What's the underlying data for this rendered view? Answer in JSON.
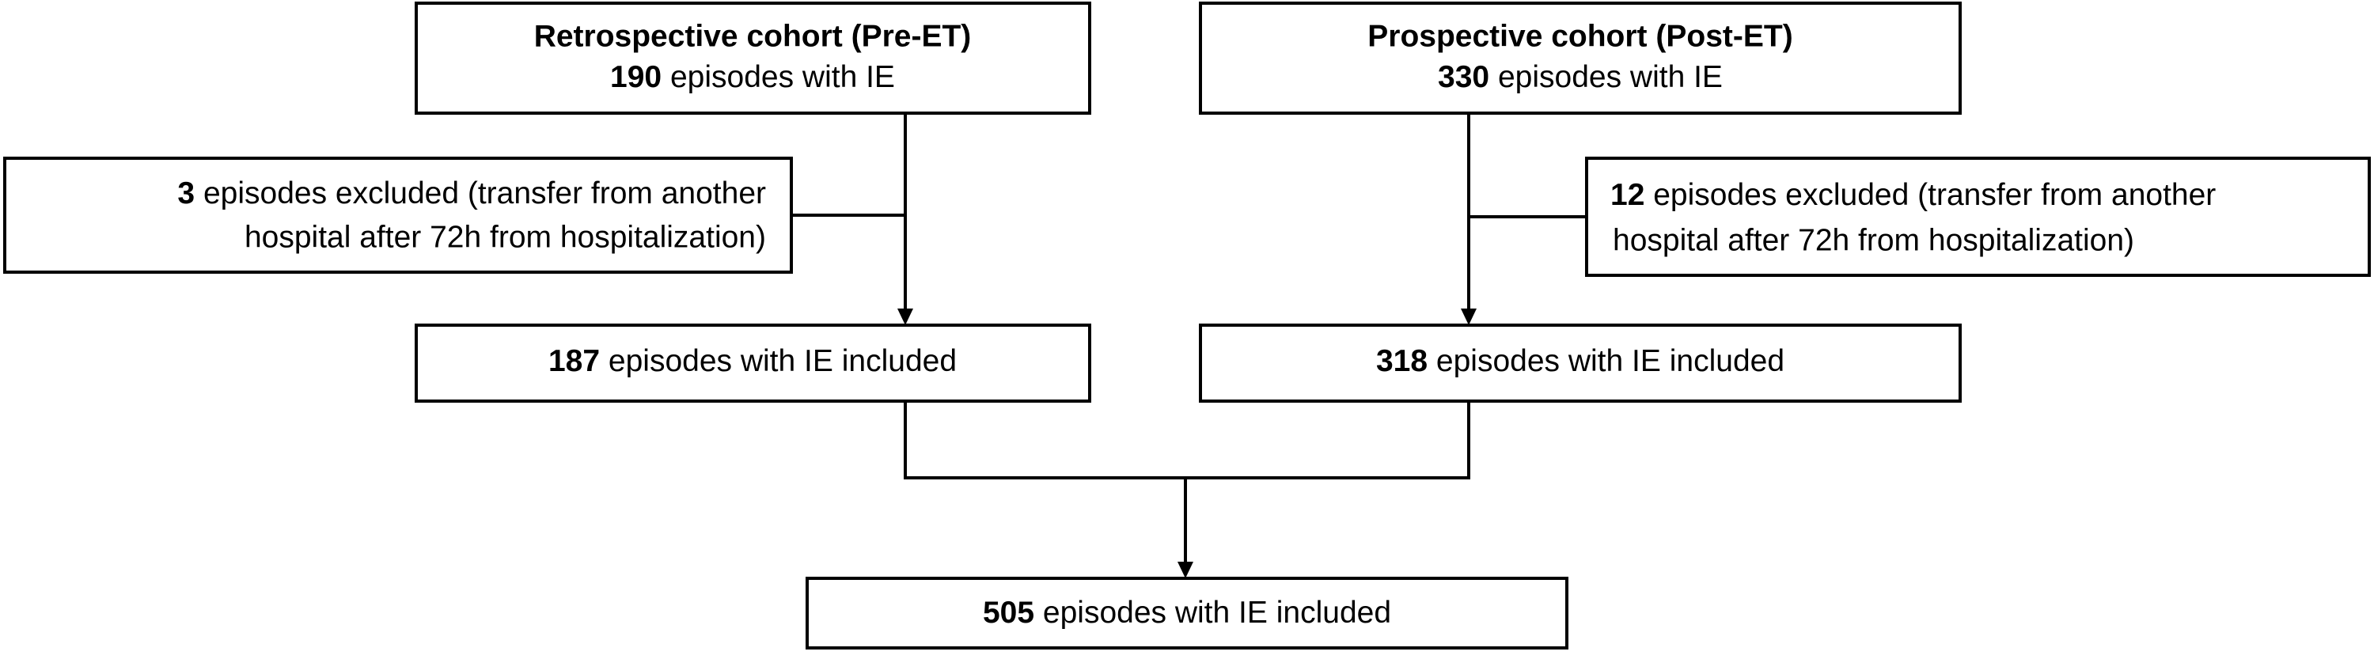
{
  "nodes": [
    {
      "title": "Retrospective cohort (Pre-ET)",
      "count": 190,
      "text": "episodes with IE"
    },
    {
      "title": "Prospective cohort (Post-ET)",
      "count": 330,
      "text": "episodes with IE"
    },
    {
      "count": 3,
      "text": "episodes excluded (transfer from another",
      "text2": "hospital after 72h from hospitalization)"
    },
    {
      "count": 12,
      "text": "episodes excluded (transfer from another",
      "text2": "hospital after 72h from hospitalization)"
    },
    {
      "count": 187,
      "text": "episodes with IE included"
    },
    {
      "count": 318,
      "text": "episodes with IE included"
    },
    {
      "count": 505,
      "text": "episodes with IE included"
    }
  ]
}
